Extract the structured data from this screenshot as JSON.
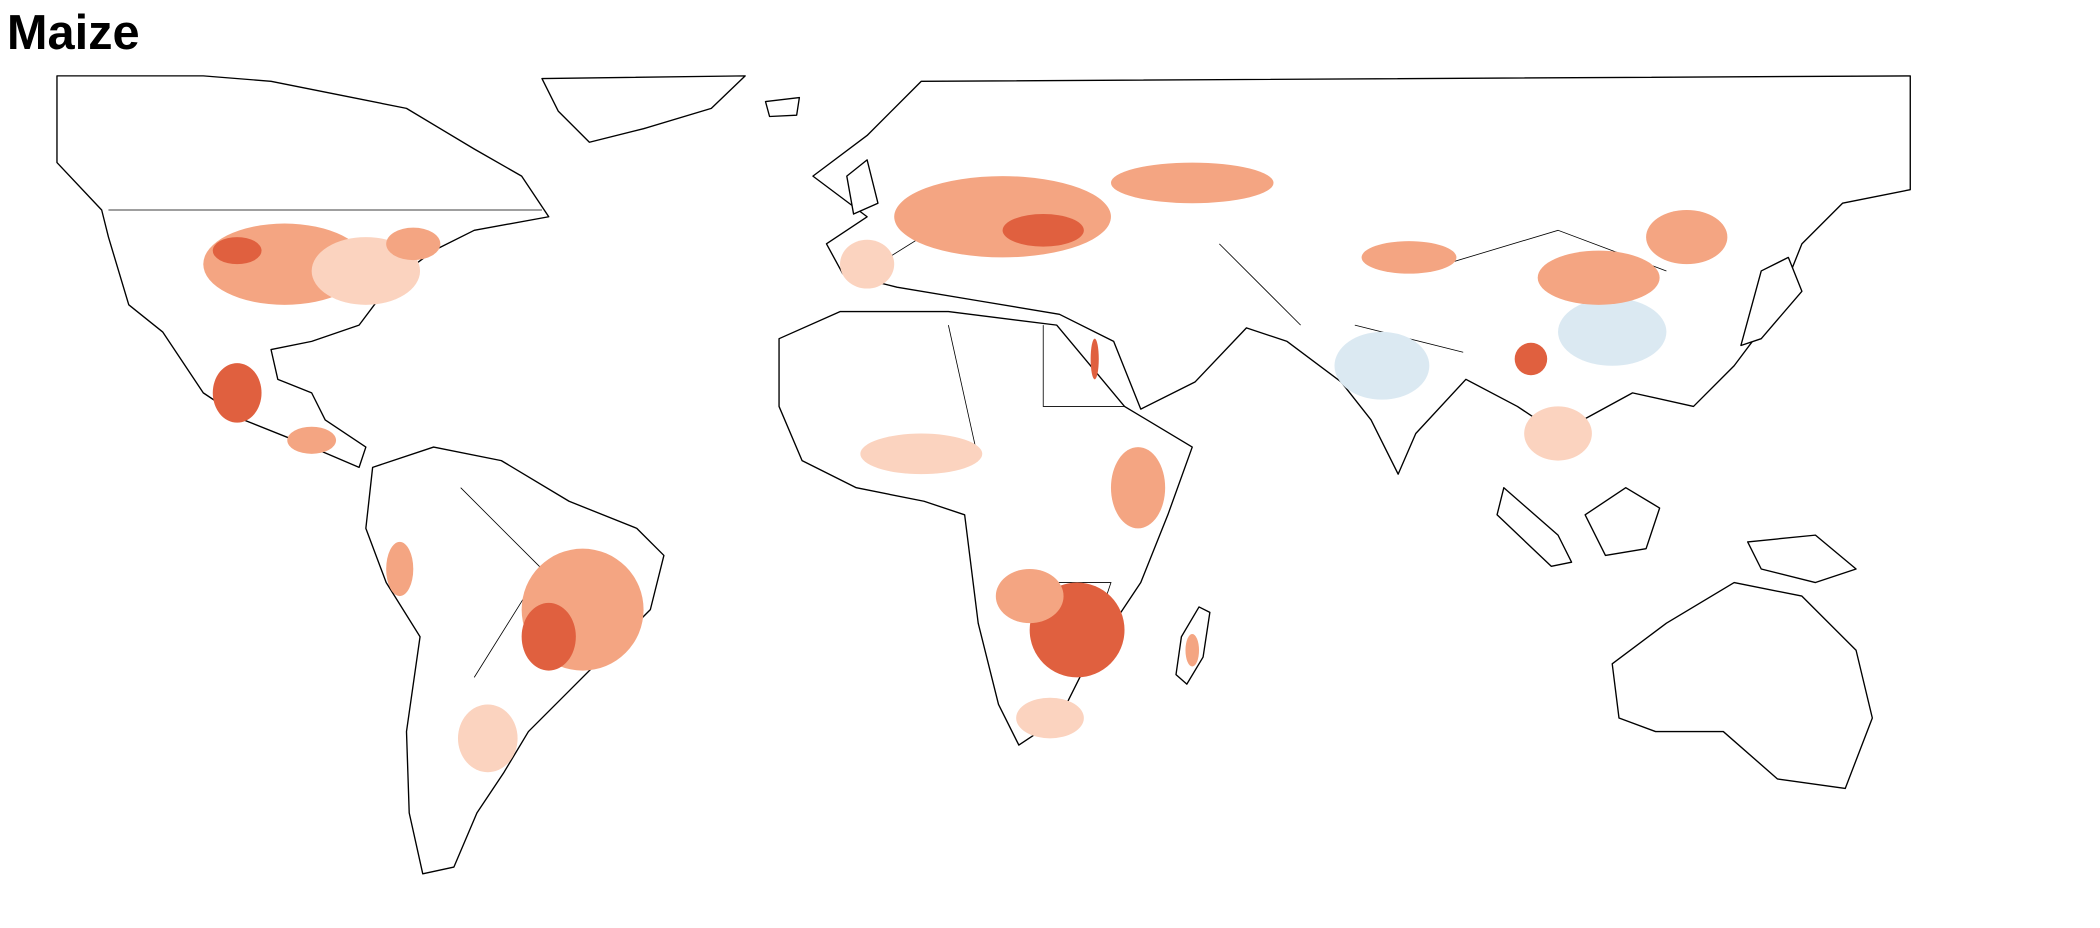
{
  "title": "Maize"
}
